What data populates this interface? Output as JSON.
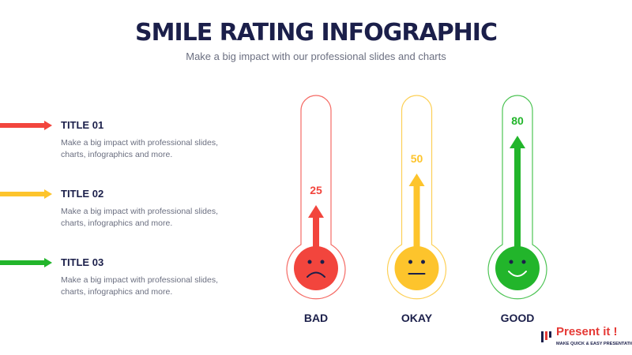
{
  "title": "SMILE RATING INFOGRAPHIC",
  "subtitle": "Make a big impact with our professional slides and charts",
  "items": [
    {
      "title": "TITLE 01",
      "text": "Make a big impact with professional slides, charts, infographics and more.",
      "color": "#f2453d"
    },
    {
      "title": "TITLE 02",
      "text": "Make a big impact with professional slides, charts, infographics and more.",
      "color": "#fdc42c"
    },
    {
      "title": "TITLE 03",
      "text": "Make a big impact with professional slides, charts, infographics and more.",
      "color": "#22b52b"
    }
  ],
  "chart_data": {
    "type": "thermometer",
    "categories": [
      "BAD",
      "OKAY",
      "GOOD"
    ],
    "values": [
      25,
      50,
      80
    ],
    "colors": [
      "#f2453d",
      "#fdc42c",
      "#22b52b"
    ]
  },
  "logo": {
    "name": "Present it !",
    "tagline": "MAKE QUICK & EASY PRESENTATIONS"
  }
}
